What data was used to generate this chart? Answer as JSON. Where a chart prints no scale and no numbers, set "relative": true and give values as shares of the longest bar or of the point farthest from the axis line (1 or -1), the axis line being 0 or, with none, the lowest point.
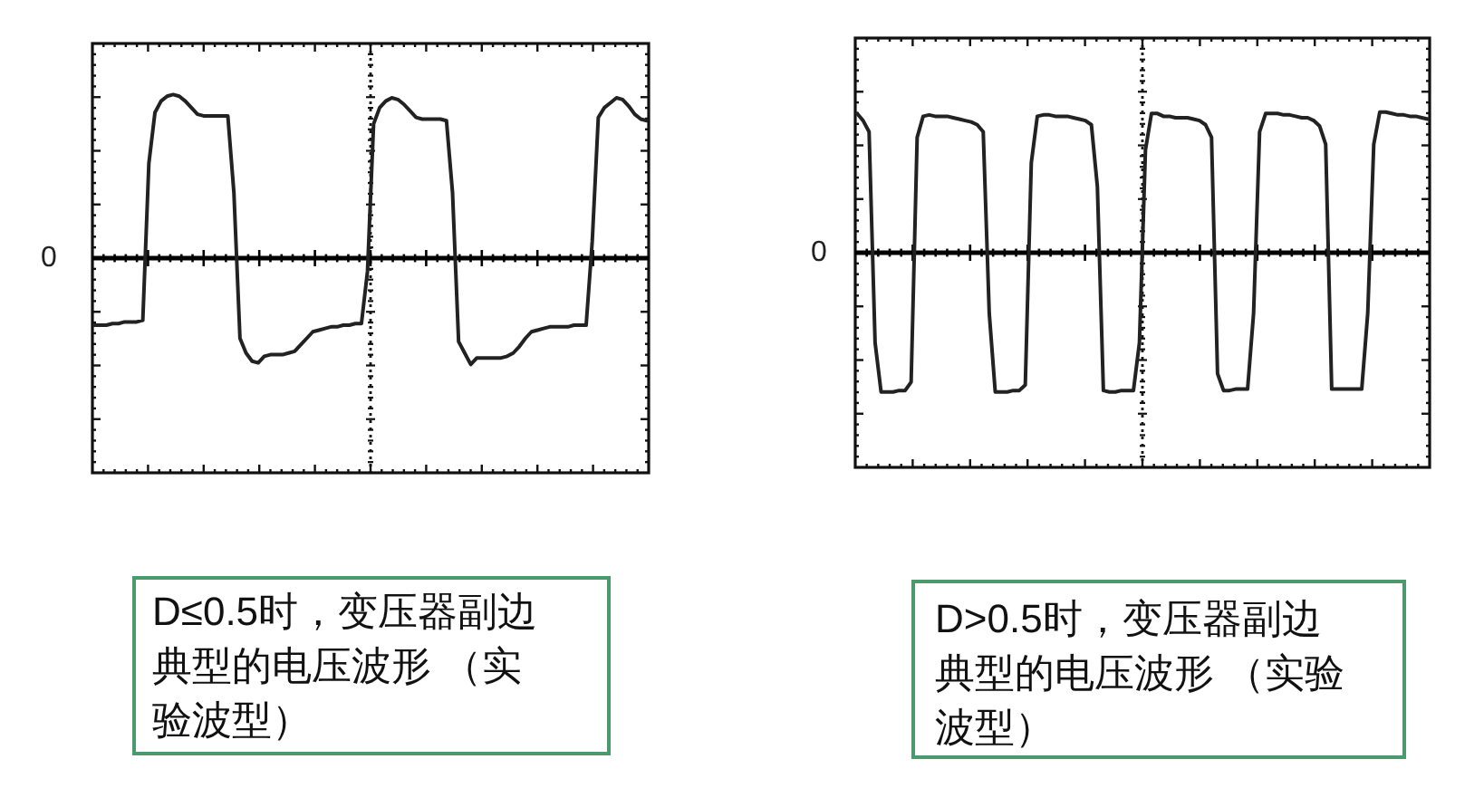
{
  "chart_data": [
    {
      "type": "line",
      "relative": true,
      "categories": [
        null,
        null,
        null,
        null,
        null,
        null,
        null,
        null,
        null,
        null,
        null,
        null,
        null,
        null,
        null,
        null,
        null,
        null,
        null,
        null,
        null,
        null,
        null,
        null,
        null,
        null,
        null,
        null,
        null,
        null,
        null,
        null,
        null,
        null,
        null,
        null,
        null,
        null,
        null,
        null,
        null,
        null,
        null,
        null,
        null,
        null,
        null,
        null,
        null,
        null,
        null,
        null,
        null,
        null,
        null,
        null,
        null,
        null,
        null,
        null,
        null,
        null,
        null,
        null,
        null,
        null,
        null,
        null,
        null,
        null,
        null,
        null,
        null,
        null,
        null,
        null,
        null,
        null,
        null,
        null,
        null,
        null,
        null,
        null,
        null,
        null,
        null,
        null,
        null,
        null,
        null,
        null
      ],
      "series": [
        {
          "color": "#222222",
          "values": [
            -0.41,
            -0.41,
            -0.41,
            -0.4,
            -0.4,
            -0.39,
            -0.39,
            -0.39,
            -0.38,
            0.58,
            0.89,
            0.96,
            0.99,
            1.0,
            0.99,
            0.96,
            0.92,
            0.88,
            0.87,
            0.87,
            0.87,
            0.87,
            0.87,
            0.4,
            -0.49,
            -0.58,
            -0.63,
            -0.64,
            -0.6,
            -0.59,
            -0.59,
            -0.59,
            -0.58,
            -0.57,
            -0.53,
            -0.49,
            -0.45,
            -0.44,
            -0.43,
            -0.42,
            -0.42,
            -0.41,
            -0.41,
            -0.4,
            -0.4,
            -0.08,
            0.82,
            0.92,
            0.96,
            0.98,
            0.97,
            0.94,
            0.9,
            0.86,
            0.85,
            0.85,
            0.85,
            0.85,
            0.84,
            0.4,
            -0.51,
            -0.58,
            -0.65,
            -0.61,
            -0.61,
            -0.61,
            -0.61,
            -0.61,
            -0.6,
            -0.58,
            -0.54,
            -0.49,
            -0.45,
            -0.44,
            -0.43,
            -0.42,
            -0.42,
            -0.42,
            -0.42,
            -0.41,
            -0.41,
            -0.41,
            0.1,
            0.86,
            0.92,
            0.95,
            0.98,
            0.97,
            0.93,
            0.88,
            0.85,
            0.84
          ]
        }
      ],
      "ref_lines": [
        {
          "axis": "y",
          "value": 0,
          "label": "0",
          "color": "#000000"
        }
      ],
      "annotations": [
        "D≤0.5时，变压器副边典型的电压波形 （实验波型）"
      ]
    },
    {
      "type": "line",
      "relative": true,
      "categories": [
        null,
        null,
        null,
        null,
        null,
        null,
        null,
        null,
        null,
        null,
        null,
        null,
        null,
        null,
        null,
        null,
        null,
        null,
        null,
        null,
        null,
        null,
        null,
        null,
        null,
        null,
        null,
        null,
        null,
        null,
        null,
        null,
        null,
        null,
        null,
        null,
        null,
        null,
        null,
        null,
        null,
        null,
        null,
        null,
        null,
        null,
        null,
        null,
        null,
        null,
        null,
        null,
        null,
        null,
        null,
        null,
        null,
        null,
        null,
        null,
        null,
        null,
        null,
        null,
        null,
        null,
        null,
        null,
        null,
        null,
        null,
        null,
        null,
        null,
        null,
        null,
        null,
        null,
        null,
        null,
        null,
        null,
        null,
        null,
        null,
        null,
        null,
        null,
        null,
        null,
        null,
        null,
        null,
        null,
        null,
        null
      ],
      "series": [
        {
          "color": "#222222",
          "values": [
            0.99,
            0.94,
            0.86,
            -0.64,
            -0.99,
            -0.99,
            -0.99,
            -0.98,
            -0.98,
            -0.92,
            0.82,
            0.97,
            0.98,
            0.97,
            0.97,
            0.97,
            0.96,
            0.95,
            0.94,
            0.93,
            0.91,
            0.86,
            -0.43,
            -0.99,
            -0.99,
            -0.99,
            -0.98,
            -0.98,
            -0.94,
            0.64,
            0.97,
            0.98,
            0.98,
            0.97,
            0.97,
            0.97,
            0.96,
            0.95,
            0.94,
            0.91,
            0.47,
            -0.98,
            -0.99,
            -0.99,
            -0.98,
            -0.98,
            -0.98,
            -0.64,
            0.73,
            0.99,
            0.99,
            0.97,
            0.97,
            0.96,
            0.96,
            0.96,
            0.95,
            0.94,
            0.91,
            0.82,
            -0.86,
            -0.98,
            -0.98,
            -0.97,
            -0.97,
            -0.97,
            -0.43,
            0.86,
            0.99,
            0.99,
            0.99,
            0.98,
            0.98,
            0.97,
            0.96,
            0.96,
            0.94,
            0.9,
            0.77,
            -0.97,
            -0.97,
            -0.97,
            -0.97,
            -0.97,
            -0.97,
            -0.43,
            0.77,
            1.0,
            1.0,
            0.99,
            0.98,
            0.98,
            0.97,
            0.97,
            0.96,
            0.95
          ]
        }
      ],
      "ref_lines": [
        {
          "axis": "y",
          "value": 0,
          "label": "0",
          "color": "#000000"
        }
      ],
      "annotations": [
        "D>0.5时，变压器副边典型的电压波形 （实验波型）"
      ]
    }
  ]
}
